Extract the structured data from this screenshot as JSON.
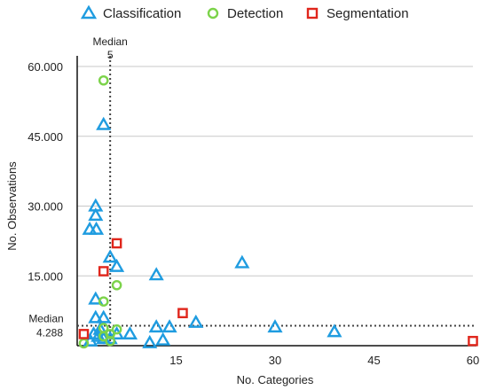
{
  "chart_data": {
    "type": "scatter",
    "xlabel": "No. Categories",
    "ylabel": "No. Observations",
    "xlim": [
      0,
      60
    ],
    "ylim": [
      0,
      60000
    ],
    "x_ticks": [
      15,
      30,
      45,
      60
    ],
    "x_tick_labels": [
      "15",
      "30",
      "45",
      "60"
    ],
    "y_ticks": [
      15000,
      30000,
      45000,
      60000
    ],
    "y_tick_labels": [
      "15.000",
      "30.000",
      "45.000",
      "60.000"
    ],
    "grid": "horizontal",
    "legend_position": "top",
    "medians": {
      "x": {
        "value": 5,
        "title": "Median",
        "label": "5"
      },
      "y": {
        "value": 4288,
        "title": "Median",
        "label": "4.288"
      }
    },
    "series": [
      {
        "name": "Classification",
        "marker": "triangle",
        "color": "#1f9ce0",
        "points": [
          {
            "x": 4,
            "y": 47500
          },
          {
            "x": 2.8,
            "y": 30000
          },
          {
            "x": 2.8,
            "y": 28000
          },
          {
            "x": 1.9,
            "y": 25000
          },
          {
            "x": 2.9,
            "y": 25000
          },
          {
            "x": 5,
            "y": 19000
          },
          {
            "x": 6,
            "y": 17000
          },
          {
            "x": 2.8,
            "y": 10000
          },
          {
            "x": 2.8,
            "y": 6000
          },
          {
            "x": 4,
            "y": 6000
          },
          {
            "x": 3.5,
            "y": 3500
          },
          {
            "x": 2.5,
            "y": 2500
          },
          {
            "x": 3.2,
            "y": 2000
          },
          {
            "x": 2,
            "y": 1000
          },
          {
            "x": 4,
            "y": 1500
          },
          {
            "x": 5,
            "y": 1500
          },
          {
            "x": 6,
            "y": 2500
          },
          {
            "x": 8,
            "y": 2500
          },
          {
            "x": 11,
            "y": 600
          },
          {
            "x": 12,
            "y": 4000
          },
          {
            "x": 12,
            "y": 15200
          },
          {
            "x": 13,
            "y": 1200
          },
          {
            "x": 14,
            "y": 4000
          },
          {
            "x": 18,
            "y": 5000
          },
          {
            "x": 25,
            "y": 17800
          },
          {
            "x": 30,
            "y": 4000
          },
          {
            "x": 39,
            "y": 3000
          }
        ]
      },
      {
        "name": "Detection",
        "marker": "circle",
        "color": "#7cd34a",
        "points": [
          {
            "x": 4,
            "y": 57000
          },
          {
            "x": 6,
            "y": 13000
          },
          {
            "x": 4,
            "y": 9500
          },
          {
            "x": 4,
            "y": 3800
          },
          {
            "x": 6,
            "y": 3500
          },
          {
            "x": 4,
            "y": 2000
          },
          {
            "x": 5,
            "y": 1000
          },
          {
            "x": 5,
            "y": 2500
          },
          {
            "x": 1,
            "y": 500
          }
        ]
      },
      {
        "name": "Segmentation",
        "marker": "square",
        "color": "#e0261c",
        "points": [
          {
            "x": 6,
            "y": 22000
          },
          {
            "x": 4,
            "y": 16000
          },
          {
            "x": 16,
            "y": 7000
          },
          {
            "x": 1,
            "y": 2500
          },
          {
            "x": 60,
            "y": 1000
          }
        ]
      }
    ]
  }
}
